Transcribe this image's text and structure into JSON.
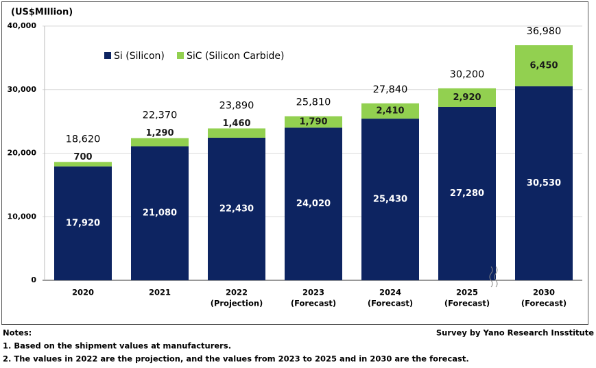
{
  "chart_data": {
    "type": "stacked_bar",
    "y_axis_label": "(US$MIllion)",
    "categories": [
      [
        "2020"
      ],
      [
        "2021"
      ],
      [
        "2022",
        "(Projection)"
      ],
      [
        "2023",
        "(Forecast)"
      ],
      [
        "2024",
        "(Forecast)"
      ],
      [
        "2025",
        "(Forecast)"
      ],
      [
        "2030",
        "(Forecast)"
      ]
    ],
    "series": [
      {
        "name": "Si (Silicon)",
        "color": "#0d2461",
        "label_color": "#ffffff",
        "values": [
          17920,
          21080,
          22430,
          24020,
          25430,
          27280,
          30530
        ],
        "value_labels": [
          "17,920",
          "21,080",
          "22,430",
          "24,020",
          "25,430",
          "27,280",
          "30,530"
        ]
      },
      {
        "name": "SiC (Silicon Carbide)",
        "color": "#92d050",
        "label_color": "#1a1a1a",
        "values": [
          700,
          1290,
          1460,
          1790,
          2410,
          2920,
          6450
        ],
        "value_labels": [
          "700",
          "1,290",
          "1,460",
          "1,790",
          "2,410",
          "2,920",
          "6,450"
        ]
      }
    ],
    "totals": [
      18620,
      22370,
      23890,
      25810,
      27840,
      30200,
      36980
    ],
    "total_labels": [
      "18,620",
      "22,370",
      "23,890",
      "25,810",
      "27,840",
      "30,200",
      "36,980"
    ],
    "ylim": [
      0,
      40000
    ],
    "yticks": [
      0,
      {
        "value": 10000,
        "label": "10,000"
      },
      {
        "value": 20000,
        "label": "20,000"
      },
      {
        "value": 30000,
        "label": "30,000"
      },
      {
        "value": 40000,
        "label": "40,000"
      }
    ],
    "grid": true,
    "notes_title": "Notes:",
    "notes": [
      "1. Based on the shipment values at manufacturers.",
      "2. The values in 2022 are the projection, and the values from 2023 to 2025 and in 2030 are the forecast."
    ],
    "source": "Survey by Yano Research Insstitute"
  }
}
